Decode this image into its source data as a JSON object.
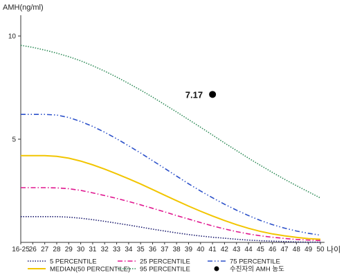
{
  "chart_data": {
    "type": "line",
    "ylabel": "AMH(ng/ml)",
    "xlabel": "나이",
    "categories": [
      "16-25",
      "26",
      "27",
      "28",
      "29",
      "30",
      "31",
      "32",
      "33",
      "34",
      "35",
      "36",
      "37",
      "38",
      "39",
      "40",
      "41",
      "42",
      "43",
      "44",
      "45",
      "46",
      "47",
      "48",
      "49",
      "50"
    ],
    "yticks": [
      "5",
      "10"
    ],
    "ylim": [
      0,
      11
    ],
    "grid": false,
    "legend_position": "bottom",
    "series": [
      {
        "name": "5 PERCENTILE",
        "color": "#1a1a6e",
        "style": "dotted",
        "values": [
          1.25,
          1.25,
          1.25,
          1.25,
          1.22,
          1.17,
          1.1,
          1.02,
          0.93,
          0.84,
          0.74,
          0.64,
          0.55,
          0.46,
          0.38,
          0.31,
          0.25,
          0.2,
          0.15,
          0.11,
          0.08,
          0.06,
          0.04,
          0.02,
          0.01,
          0.01
        ]
      },
      {
        "name": "25 PERCENTILE",
        "color": "#e0168f",
        "style": "dashdot",
        "values": [
          2.65,
          2.65,
          2.65,
          2.64,
          2.6,
          2.52,
          2.4,
          2.27,
          2.13,
          1.98,
          1.82,
          1.65,
          1.48,
          1.3,
          1.13,
          0.96,
          0.8,
          0.65,
          0.52,
          0.41,
          0.32,
          0.25,
          0.19,
          0.14,
          0.11,
          0.09
        ]
      },
      {
        "name": "MEDIAN(50 PERCENTILE)",
        "color": "#f2c500",
        "style": "solid",
        "values": [
          4.2,
          4.2,
          4.2,
          4.17,
          4.08,
          3.94,
          3.76,
          3.55,
          3.32,
          3.08,
          2.83,
          2.56,
          2.29,
          2.02,
          1.76,
          1.51,
          1.28,
          1.06,
          0.86,
          0.68,
          0.53,
          0.41,
          0.32,
          0.24,
          0.18,
          0.15
        ]
      },
      {
        "name": "75 PERCENTILE",
        "color": "#2a4fc9",
        "style": "dashdotdot",
        "values": [
          6.2,
          6.2,
          6.2,
          6.17,
          6.05,
          5.86,
          5.62,
          5.34,
          5.02,
          4.68,
          4.33,
          3.96,
          3.59,
          3.21,
          2.84,
          2.49,
          2.16,
          1.85,
          1.56,
          1.3,
          1.06,
          0.86,
          0.69,
          0.55,
          0.44,
          0.35
        ]
      },
      {
        "name": "95 PERCENTILE",
        "color": "#2e8b57",
        "style": "dotted",
        "values": [
          9.55,
          9.45,
          9.32,
          9.17,
          9.0,
          8.8,
          8.56,
          8.3,
          8.01,
          7.7,
          7.38,
          7.04,
          6.68,
          6.32,
          5.95,
          5.58,
          5.2,
          4.82,
          4.45,
          4.08,
          3.73,
          3.39,
          3.06,
          2.75,
          2.45,
          2.15
        ]
      }
    ],
    "annotation": {
      "label": "7.17",
      "x": "41",
      "value": 7.17,
      "legend_label": "수진자의 AMH 농도",
      "color": "#000000"
    }
  }
}
